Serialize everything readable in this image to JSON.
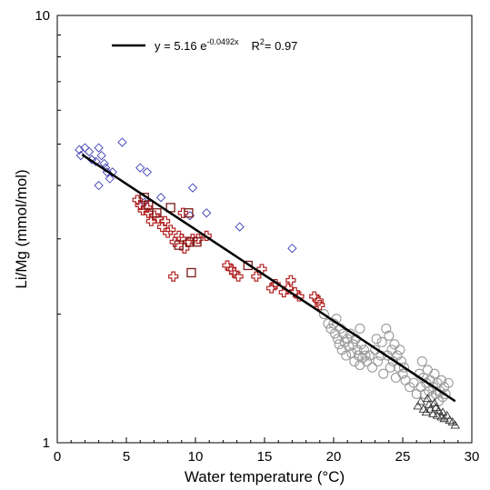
{
  "chart_data": {
    "type": "scatter",
    "xlabel": "Water temperature (°C)",
    "ylabel": "Li/Mg (mmol/mol)",
    "xlim": [
      0,
      30
    ],
    "ylim": [
      1,
      10
    ],
    "y_scale": "log",
    "x_ticks": [
      "0",
      "5",
      "10",
      "15",
      "20",
      "25",
      "30"
    ],
    "y_ticks": [
      "1",
      "10"
    ],
    "grid": false,
    "legend": {
      "position": "top-left",
      "equation_text": "y = 5.16 e",
      "equation_exponent": "-0.0492x",
      "r2_prefix": "R",
      "r2_sup": "2",
      "r2_value": "= 0.97"
    },
    "fit": {
      "a": 5.16,
      "b": -0.0492,
      "x_range": [
        1.8,
        28.8
      ]
    },
    "colors": {
      "diamond": "#3b3bb5",
      "cross": "#b22222",
      "square": "#7a1a1a",
      "circle": "#9a9a9a",
      "triangle": "#333333",
      "fit": "#000000"
    },
    "series": [
      {
        "marker": "diamond",
        "points": [
          [
            1.6,
            4.85
          ],
          [
            1.7,
            4.7
          ],
          [
            2.0,
            4.9
          ],
          [
            2.3,
            4.8
          ],
          [
            2.5,
            4.6
          ],
          [
            2.8,
            4.55
          ],
          [
            3.0,
            4.9
          ],
          [
            3.2,
            4.7
          ],
          [
            3.4,
            4.5
          ],
          [
            3.5,
            4.4
          ],
          [
            3.6,
            4.3
          ],
          [
            3.0,
            4.0
          ],
          [
            3.8,
            4.15
          ],
          [
            4.0,
            4.3
          ],
          [
            4.7,
            5.05
          ],
          [
            6.0,
            4.4
          ],
          [
            6.5,
            4.3
          ],
          [
            7.5,
            3.75
          ],
          [
            9.8,
            3.95
          ],
          [
            9.6,
            3.4
          ],
          [
            10.8,
            3.45
          ],
          [
            13.2,
            3.2
          ],
          [
            17.0,
            2.85
          ],
          [
            6.3,
            3.65
          ]
        ]
      },
      {
        "marker": "cross",
        "points": [
          [
            5.8,
            3.7
          ],
          [
            6.0,
            3.6
          ],
          [
            6.2,
            3.5
          ],
          [
            6.5,
            3.55
          ],
          [
            6.6,
            3.45
          ],
          [
            6.8,
            3.3
          ],
          [
            7.0,
            3.4
          ],
          [
            7.3,
            3.35
          ],
          [
            7.6,
            3.2
          ],
          [
            7.8,
            3.3
          ],
          [
            8.0,
            3.1
          ],
          [
            8.2,
            3.15
          ],
          [
            8.5,
            2.95
          ],
          [
            8.8,
            3.05
          ],
          [
            9.0,
            3.0
          ],
          [
            9.2,
            2.85
          ],
          [
            9.5,
            2.95
          ],
          [
            9.8,
            3.0
          ],
          [
            10.2,
            3.0
          ],
          [
            10.8,
            3.05
          ],
          [
            9.1,
            3.45
          ],
          [
            12.3,
            2.6
          ],
          [
            12.6,
            2.55
          ],
          [
            12.8,
            2.5
          ],
          [
            13.1,
            2.45
          ],
          [
            14.4,
            2.45
          ],
          [
            14.8,
            2.55
          ],
          [
            15.8,
            2.35
          ],
          [
            16.4,
            2.25
          ],
          [
            16.7,
            2.3
          ],
          [
            16.9,
            2.4
          ],
          [
            17.2,
            2.25
          ],
          [
            17.5,
            2.2
          ],
          [
            18.6,
            2.2
          ],
          [
            18.9,
            2.15
          ],
          [
            19.0,
            2.1
          ],
          [
            8.4,
            2.45
          ],
          [
            15.5,
            2.3
          ]
        ]
      },
      {
        "marker": "square",
        "points": [
          [
            6.3,
            3.75
          ],
          [
            6.6,
            3.6
          ],
          [
            8.2,
            3.55
          ],
          [
            9.5,
            3.45
          ],
          [
            8.8,
            2.9
          ],
          [
            9.6,
            2.95
          ],
          [
            10.1,
            2.95
          ],
          [
            13.8,
            2.6
          ],
          [
            9.7,
            2.5
          ],
          [
            7.2,
            3.45
          ]
        ]
      },
      {
        "marker": "circle",
        "points": [
          [
            19.3,
            2.0
          ],
          [
            19.6,
            1.9
          ],
          [
            19.8,
            1.85
          ],
          [
            20.0,
            1.9
          ],
          [
            20.1,
            1.8
          ],
          [
            20.2,
            1.95
          ],
          [
            20.3,
            1.75
          ],
          [
            20.4,
            1.7
          ],
          [
            20.5,
            1.85
          ],
          [
            20.6,
            1.65
          ],
          [
            20.7,
            1.8
          ],
          [
            20.8,
            1.72
          ],
          [
            20.9,
            1.6
          ],
          [
            21.0,
            1.75
          ],
          [
            21.1,
            1.68
          ],
          [
            21.2,
            1.8
          ],
          [
            21.3,
            1.62
          ],
          [
            21.4,
            1.7
          ],
          [
            21.5,
            1.55
          ],
          [
            21.6,
            1.75
          ],
          [
            21.7,
            1.65
          ],
          [
            21.8,
            1.6
          ],
          [
            21.9,
            1.85
          ],
          [
            22.0,
            1.7
          ],
          [
            22.1,
            1.58
          ],
          [
            22.2,
            1.65
          ],
          [
            22.4,
            1.55
          ],
          [
            22.6,
            1.6
          ],
          [
            22.8,
            1.5
          ],
          [
            23.0,
            1.65
          ],
          [
            23.2,
            1.55
          ],
          [
            23.4,
            1.6
          ],
          [
            23.5,
            1.72
          ],
          [
            23.6,
            1.45
          ],
          [
            23.8,
            1.85
          ],
          [
            23.9,
            1.6
          ],
          [
            24.0,
            1.78
          ],
          [
            24.1,
            1.5
          ],
          [
            24.2,
            1.65
          ],
          [
            24.3,
            1.55
          ],
          [
            24.4,
            1.7
          ],
          [
            24.5,
            1.42
          ],
          [
            24.6,
            1.6
          ],
          [
            24.7,
            1.5
          ],
          [
            24.8,
            1.65
          ],
          [
            24.9,
            1.55
          ],
          [
            25.0,
            1.45
          ],
          [
            25.2,
            1.4
          ],
          [
            25.5,
            1.35
          ],
          [
            25.8,
            1.38
          ],
          [
            26.0,
            1.3
          ],
          [
            26.2,
            1.45
          ],
          [
            26.3,
            1.35
          ],
          [
            26.4,
            1.55
          ],
          [
            26.5,
            1.42
          ],
          [
            26.6,
            1.3
          ],
          [
            26.7,
            1.38
          ],
          [
            26.8,
            1.48
          ],
          [
            26.9,
            1.32
          ],
          [
            27.0,
            1.4
          ],
          [
            27.1,
            1.28
          ],
          [
            27.2,
            1.35
          ],
          [
            27.3,
            1.45
          ],
          [
            27.4,
            1.3
          ],
          [
            27.5,
            1.38
          ],
          [
            27.6,
            1.25
          ],
          [
            27.7,
            1.32
          ],
          [
            27.8,
            1.4
          ],
          [
            27.9,
            1.28
          ],
          [
            28.0,
            1.35
          ],
          [
            28.1,
            1.3
          ],
          [
            28.3,
            1.38
          ],
          [
            22.3,
            1.6
          ],
          [
            23.1,
            1.75
          ],
          [
            25.1,
            1.5
          ],
          [
            21.9,
            1.52
          ]
        ]
      },
      {
        "marker": "triangle",
        "points": [
          [
            26.1,
            1.22
          ],
          [
            26.3,
            1.25
          ],
          [
            26.5,
            1.2
          ],
          [
            26.7,
            1.18
          ],
          [
            26.9,
            1.23
          ],
          [
            27.0,
            1.2
          ],
          [
            27.2,
            1.17
          ],
          [
            27.4,
            1.21
          ],
          [
            27.5,
            1.16
          ],
          [
            27.6,
            1.19
          ],
          [
            27.8,
            1.15
          ],
          [
            27.9,
            1.18
          ],
          [
            28.0,
            1.14
          ],
          [
            28.2,
            1.16
          ],
          [
            28.4,
            1.13
          ],
          [
            28.6,
            1.12
          ],
          [
            28.8,
            1.1
          ],
          [
            27.3,
            1.24
          ],
          [
            26.8,
            1.27
          ]
        ]
      }
    ]
  }
}
